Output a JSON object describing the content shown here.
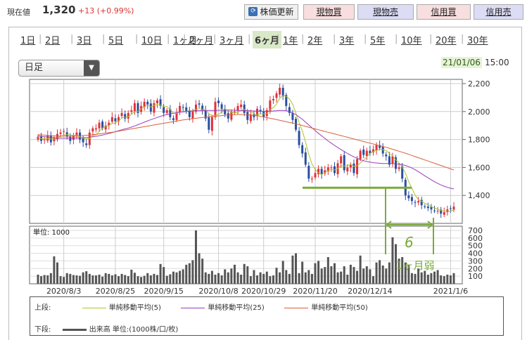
{
  "header": {
    "price_label": "現在値",
    "price": "1,320",
    "change": "+13 (+0.99%)",
    "refresh_label": "株価更新",
    "refresh_icon": "refresh-icon",
    "buttons": [
      "現物買",
      "現物売",
      "信用買",
      "信用売"
    ]
  },
  "tabs": [
    "1日",
    "2日",
    "3日",
    "5日",
    "10日",
    "1ヶ月",
    "2ヶ月",
    "3ヶ月",
    "6ヶ月",
    "1年",
    "2年",
    "3年",
    "5年",
    "10年",
    "20年",
    "30年"
  ],
  "active_tab": "6ヶ月",
  "dropdown": {
    "value": "日足",
    "icon": "triangle-down-icon"
  },
  "timestamp": {
    "date": "21/01/06",
    "time": "15:00"
  },
  "colors": {
    "ma5": "#a9c62b",
    "ma25": "#9b3bb8",
    "ma50": "#d9603a",
    "annotation": "#7aab3a",
    "candle_up": "#e0313a",
    "candle_down": "#2a4ea0"
  },
  "chart_data": {
    "type": "candlestick",
    "price_ylim": [
      1200,
      2200
    ],
    "price_yticks": [
      "2,200",
      "2,000",
      "1,800",
      "1,600",
      "1,400"
    ],
    "volume_yticks": [
      "700",
      "600",
      "500",
      "400",
      "300",
      "200",
      "100"
    ],
    "volume_unit_label": "単位: 1000",
    "volume_ylim": [
      0,
      700
    ],
    "x_tick_labels": [
      "2020/8/3",
      "2020/8/25",
      "2020/9/15",
      "2020/10/8",
      "2020/10/29",
      "2020/11/20",
      "2020/12/14",
      "2021/1/6"
    ],
    "close": [
      1820,
      1790,
      1800,
      1830,
      1780,
      1810,
      1840,
      1850,
      1860,
      1820,
      1790,
      1830,
      1850,
      1800,
      1780,
      1760,
      1850,
      1880,
      1880,
      1920,
      1880,
      1900,
      1920,
      1960,
      1930,
      1960,
      1990,
      1950,
      1990,
      2010,
      2060,
      1990,
      2040,
      2070,
      2050,
      2000,
      2060,
      2080,
      2040,
      1990,
      2010,
      1960,
      1940,
      1990,
      2040,
      2030,
      2000,
      1960,
      2000,
      2050,
      2050,
      2010,
      1950,
      1870,
      1960,
      2070,
      2060,
      2020,
      1980,
      1950,
      2000,
      2000,
      2040,
      2050,
      1990,
      1940,
      1980,
      1960,
      2020,
      2000,
      1960,
      2010,
      2080,
      2090,
      2130,
      2170,
      2110,
      2040,
      1990,
      1940,
      1870,
      1760,
      1700,
      1620,
      1520,
      1520,
      1560,
      1590,
      1550,
      1580,
      1600,
      1600,
      1560,
      1630,
      1680,
      1580,
      1600,
      1620,
      1560,
      1660,
      1720,
      1690,
      1720,
      1700,
      1730,
      1760,
      1740,
      1700,
      1680,
      1620,
      1680,
      1590,
      1600,
      1520,
      1400,
      1380,
      1360,
      1350,
      1360,
      1330,
      1320,
      1310,
      1300,
      1290,
      1290,
      1270,
      1280,
      1300,
      1307,
      1320
    ],
    "series": [
      {
        "name": "単純移動平均(5)",
        "values": [
          1813,
          1806,
          1804,
          1808,
          1804,
          1802,
          1813,
          1823,
          1830,
          1836,
          1832,
          1830,
          1830,
          1818,
          1810,
          1804,
          1808,
          1828,
          1834,
          1858,
          1882,
          1892,
          1900,
          1916,
          1918,
          1934,
          1952,
          1960,
          1964,
          1980,
          2000,
          2000,
          2018,
          2034,
          2046,
          2032,
          2044,
          2050,
          2046,
          2034,
          2036,
          2016,
          1988,
          1988,
          1996,
          2002,
          2002,
          2004,
          2006,
          2016,
          2020,
          2014,
          2012,
          1986,
          1970,
          1972,
          1982,
          1994,
          2018,
          2006,
          1992,
          1990,
          1994,
          2008,
          2016,
          2004,
          2000,
          1984,
          1978,
          1982,
          1984,
          1986,
          2014,
          2028,
          2054,
          2096,
          2116,
          2108,
          2090,
          2054,
          1990,
          1922,
          1862,
          1782,
          1694,
          1624,
          1586,
          1562,
          1550,
          1564,
          1580,
          1586,
          1582,
          1592,
          1614,
          1610,
          1614,
          1622,
          1608,
          1612,
          1632,
          1652,
          1676,
          1700,
          1714,
          1722,
          1730,
          1726,
          1722,
          1700,
          1684,
          1654,
          1634,
          1602,
          1560,
          1498,
          1452,
          1402,
          1370,
          1358,
          1344,
          1332,
          1320,
          1310,
          1302,
          1292,
          1288,
          1287,
          1287,
          1296
        ]
      },
      {
        "name": "単純移動平均(25)",
        "values": [
          1826,
          1823,
          1820,
          1818,
          1815,
          1813,
          1811,
          1810,
          1810,
          1810,
          1810,
          1810,
          1811,
          1812,
          1813,
          1814,
          1816,
          1819,
          1823,
          1827,
          1832,
          1837,
          1843,
          1849,
          1856,
          1863,
          1870,
          1876,
          1882,
          1889,
          1897,
          1906,
          1915,
          1924,
          1933,
          1942,
          1950,
          1958,
          1966,
          1973,
          1979,
          1984,
          1988,
          1992,
          1995,
          1998,
          2000,
          2002,
          2004,
          2005,
          2006,
          2007,
          2008,
          2008,
          2008,
          2008,
          2009,
          2010,
          2011,
          2011,
          2010,
          2009,
          2008,
          2007,
          2007,
          2006,
          2005,
          2004,
          2003,
          2002,
          2002,
          2002,
          2003,
          2004,
          2006,
          2008,
          2008,
          2006,
          2000,
          1990,
          1978,
          1962,
          1944,
          1924,
          1904,
          1884,
          1864,
          1844,
          1826,
          1808,
          1790,
          1774,
          1758,
          1742,
          1728,
          1714,
          1700,
          1688,
          1676,
          1666,
          1656,
          1648,
          1642,
          1638,
          1634,
          1632,
          1630,
          1628,
          1628,
          1628,
          1628,
          1626,
          1624,
          1620,
          1614,
          1606,
          1596,
          1584,
          1570,
          1556,
          1540,
          1526,
          1512,
          1498,
          1486,
          1475,
          1466,
          1458,
          1452,
          1446
        ]
      },
      {
        "name": "単純移動平均(50)",
        "values": [
          1835,
          1833,
          1831,
          1829,
          1827,
          1826,
          1825,
          1824,
          1824,
          1824,
          1824,
          1824,
          1825,
          1826,
          1828,
          1830,
          1832,
          1834,
          1837,
          1840,
          1843,
          1846,
          1849,
          1852,
          1856,
          1860,
          1864,
          1868,
          1872,
          1876,
          1880,
          1884,
          1888,
          1892,
          1896,
          1900,
          1904,
          1908,
          1912,
          1916,
          1920,
          1924,
          1928,
          1932,
          1936,
          1940,
          1943,
          1946,
          1949,
          1952,
          1955,
          1958,
          1961,
          1963,
          1965,
          1967,
          1969,
          1971,
          1973,
          1975,
          1977,
          1978,
          1979,
          1979,
          1979,
          1978,
          1976,
          1973,
          1970,
          1966,
          1962,
          1957,
          1952,
          1947,
          1942,
          1937,
          1932,
          1927,
          1922,
          1917,
          1912,
          1906,
          1900,
          1894,
          1888,
          1882,
          1876,
          1870,
          1864,
          1858,
          1852,
          1846,
          1840,
          1834,
          1828,
          1822,
          1816,
          1810,
          1804,
          1798,
          1792,
          1786,
          1780,
          1774,
          1768,
          1762,
          1756,
          1750,
          1744,
          1737,
          1730,
          1723,
          1716,
          1709,
          1702,
          1694,
          1686,
          1678,
          1670,
          1662,
          1654,
          1646,
          1638,
          1630,
          1622,
          1614,
          1606,
          1598,
          1590,
          1582
        ]
      }
    ],
    "volume": [
      120,
      100,
      115,
      110,
      140,
      360,
      280,
      100,
      90,
      140,
      130,
      115,
      110,
      105,
      150,
      165,
      130,
      110,
      110,
      120,
      95,
      140,
      130,
      110,
      125,
      100,
      130,
      115,
      100,
      185,
      145,
      100,
      90,
      105,
      140,
      110,
      130,
      115,
      260,
      220,
      105,
      125,
      160,
      150,
      170,
      190,
      250,
      270,
      310,
      770,
      400,
      330,
      150,
      130,
      170,
      120,
      140,
      110,
      190,
      150,
      200,
      250,
      150,
      120,
      260,
      230,
      100,
      180,
      110,
      150,
      130,
      160,
      100,
      110,
      210,
      150,
      300,
      180,
      130,
      370,
      400,
      140,
      290,
      150,
      180,
      130,
      270,
      300,
      200,
      220,
      350,
      230,
      270,
      150,
      160,
      230,
      120,
      250,
      220,
      170,
      370,
      200,
      230,
      190,
      100,
      280,
      310,
      240,
      200,
      280,
      610,
      520,
      330,
      350,
      280,
      250,
      140,
      130,
      200,
      150,
      170,
      120,
      140,
      160,
      180,
      110,
      100,
      120,
      110,
      140
    ],
    "legend": {
      "upper_label": "上段:",
      "lower_label": "下段:",
      "volume_label": "出来高 単位:(1000株/口/枚)"
    }
  },
  "annotation": {
    "duration_label": "1ヶ月弱",
    "support_price": 1455,
    "handwritten_char": "6"
  }
}
